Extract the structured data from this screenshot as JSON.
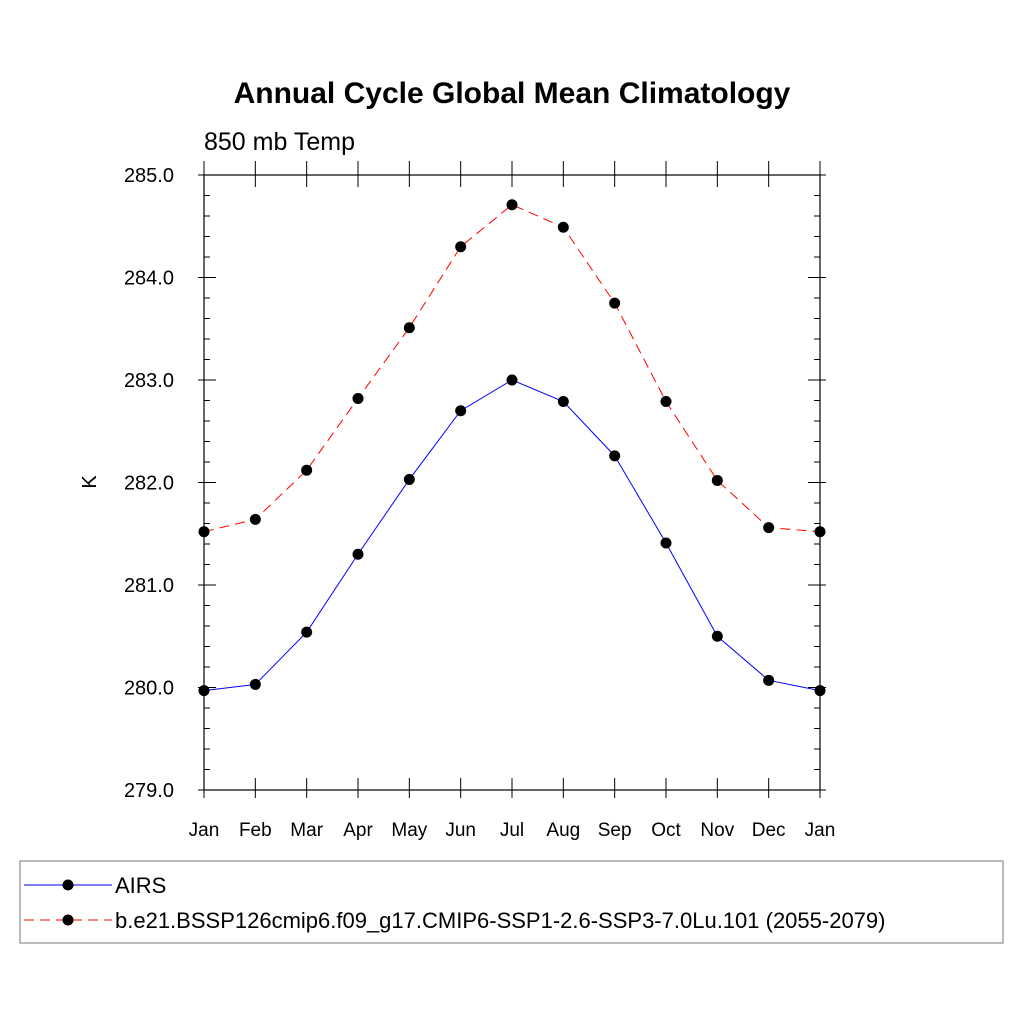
{
  "chart_data": {
    "type": "line",
    "title": "Annual Cycle Global Mean Climatology",
    "subtitle": "850 mb Temp",
    "ylabel": "K",
    "xlabel": "",
    "categories": [
      "Jan",
      "Feb",
      "Mar",
      "Apr",
      "May",
      "Jun",
      "Jul",
      "Aug",
      "Sep",
      "Oct",
      "Nov",
      "Dec",
      "Jan"
    ],
    "ylim": [
      279.0,
      285.0
    ],
    "yticks": [
      "279.0",
      "280.0",
      "281.0",
      "282.0",
      "283.0",
      "284.0",
      "285.0"
    ],
    "series": [
      {
        "name": "AIRS",
        "color": "#0000ff",
        "dash": "solid",
        "marker": "filled-circle",
        "values": [
          279.97,
          280.03,
          280.54,
          281.3,
          282.03,
          282.7,
          283.0,
          282.79,
          282.26,
          281.41,
          280.5,
          280.07,
          279.97
        ]
      },
      {
        "name": "b.e21.BSSP126cmip6.f09_g17.CMIP6-SSP1-2.6-SSP3-7.0Lu.101 (2055-2079)",
        "color": "#ff0000",
        "dash": "dashed",
        "marker": "filled-circle",
        "values": [
          281.52,
          281.64,
          282.12,
          282.82,
          283.51,
          284.3,
          284.71,
          284.49,
          283.75,
          282.79,
          282.02,
          281.56,
          281.52
        ]
      }
    ],
    "grid": false,
    "legend_position": "bottom"
  }
}
